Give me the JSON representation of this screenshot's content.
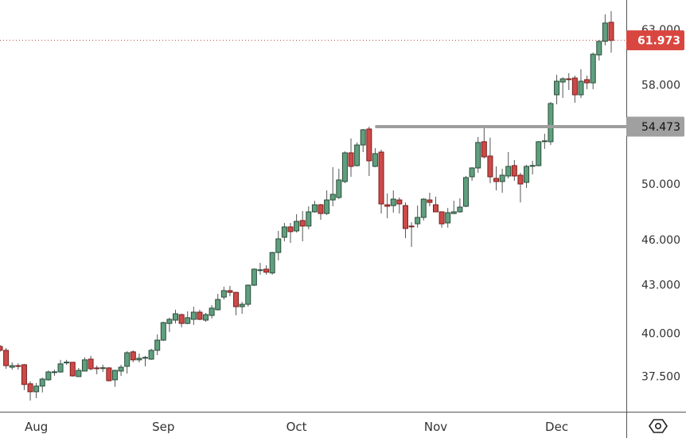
{
  "chart_data": {
    "type": "candlestick",
    "y_scale": "log",
    "grid": false,
    "y_ticks": [
      63,
      58,
      54.473,
      50,
      46,
      43,
      40,
      37.5
    ],
    "y_tick_labels": [
      "63.000",
      "58.000",
      "50.000",
      "46.000",
      "43.000",
      "40.000",
      "37.500"
    ],
    "x_tick_labels": [
      {
        "label": "Aug",
        "bar": 6
      },
      {
        "label": "Sep",
        "bar": 27
      },
      {
        "label": "Oct",
        "bar": 49
      },
      {
        "label": "Nov",
        "bar": 72
      },
      {
        "label": "Dec",
        "bar": 92
      }
    ],
    "last_price": {
      "value": 61.973,
      "label": "61.973"
    },
    "horizontal_line": {
      "value": 54.473,
      "label": "54.473",
      "from_bar": 62
    },
    "candles": [
      [
        39.22,
        39.31,
        38.9,
        38.99
      ],
      [
        38.99,
        39.13,
        37.93,
        38.11
      ],
      [
        38.02,
        38.3,
        37.88,
        38.11
      ],
      [
        38.11,
        38.25,
        37.88,
        38.1
      ],
      [
        38.16,
        38.21,
        36.74,
        37.05
      ],
      [
        37.09,
        37.22,
        36.17,
        36.65
      ],
      [
        36.65,
        37.13,
        36.3,
        36.96
      ],
      [
        36.96,
        37.44,
        36.61,
        37.35
      ],
      [
        37.31,
        37.84,
        37.26,
        37.75
      ],
      [
        37.75,
        37.88,
        37.53,
        37.76
      ],
      [
        37.75,
        38.44,
        37.71,
        38.21
      ],
      [
        38.3,
        38.44,
        38.16,
        38.31
      ],
      [
        38.3,
        38.32,
        37.49,
        37.53
      ],
      [
        37.49,
        37.98,
        37.49,
        37.84
      ],
      [
        37.8,
        38.58,
        37.8,
        38.44
      ],
      [
        38.48,
        38.67,
        37.84,
        37.93
      ],
      [
        37.98,
        38.11,
        37.62,
        37.97
      ],
      [
        37.98,
        38.16,
        37.75,
        37.99
      ],
      [
        37.98,
        38.02,
        37.22,
        37.26
      ],
      [
        37.31,
        37.88,
        36.92,
        37.84
      ],
      [
        37.8,
        38.16,
        37.53,
        38.02
      ],
      [
        38.07,
        38.94,
        37.66,
        38.85
      ],
      [
        38.9,
        38.99,
        38.3,
        38.44
      ],
      [
        38.44,
        38.81,
        38.3,
        38.53
      ],
      [
        38.57,
        38.67,
        38.07,
        38.58
      ],
      [
        38.48,
        39.08,
        38.44,
        38.99
      ],
      [
        38.99,
        39.93,
        38.71,
        39.59
      ],
      [
        39.59,
        40.69,
        39.55,
        40.64
      ],
      [
        40.59,
        40.94,
        40.07,
        40.84
      ],
      [
        40.79,
        41.43,
        40.59,
        41.18
      ],
      [
        41.13,
        41.18,
        40.35,
        40.59
      ],
      [
        40.59,
        41.33,
        40.54,
        40.94
      ],
      [
        40.84,
        41.62,
        40.5,
        41.28
      ],
      [
        41.28,
        41.43,
        40.79,
        40.84
      ],
      [
        40.79,
        41.23,
        40.69,
        41.13
      ],
      [
        41.08,
        41.72,
        40.89,
        41.53
      ],
      [
        41.43,
        42.42,
        41.38,
        42.07
      ],
      [
        42.22,
        42.88,
        42.07,
        42.63
      ],
      [
        42.63,
        42.93,
        42.27,
        42.52
      ],
      [
        42.52,
        42.54,
        41.09,
        41.62
      ],
      [
        41.62,
        41.92,
        41.18,
        41.77
      ],
      [
        41.77,
        43.03,
        41.62,
        42.98
      ],
      [
        42.98,
        44.07,
        42.93,
        44.02
      ],
      [
        43.97,
        44.44,
        43.66,
        43.98
      ],
      [
        44.02,
        44.28,
        43.66,
        43.82
      ],
      [
        43.77,
        45.18,
        43.66,
        45.13
      ],
      [
        45.13,
        46.61,
        44.6,
        46.06
      ],
      [
        46.17,
        47.17,
        45.89,
        46.89
      ],
      [
        46.89,
        47.17,
        45.78,
        46.56
      ],
      [
        46.61,
        47.79,
        46.5,
        47.28
      ],
      [
        47.34,
        48.01,
        45.89,
        46.95
      ],
      [
        46.95,
        48.36,
        46.72,
        47.96
      ],
      [
        47.96,
        48.76,
        47.9,
        48.47
      ],
      [
        48.47,
        48.53,
        47.39,
        47.84
      ],
      [
        47.84,
        49.52,
        47.73,
        48.82
      ],
      [
        48.82,
        51.27,
        48.36,
        49.23
      ],
      [
        49.0,
        51.15,
        48.88,
        50.3
      ],
      [
        50.18,
        52.5,
        50.06,
        52.38
      ],
      [
        52.38,
        53.52,
        50.54,
        51.33
      ],
      [
        51.39,
        53.2,
        51.33,
        53.0
      ],
      [
        53.0,
        54.28,
        52.44,
        54.22
      ],
      [
        54.28,
        54.47,
        50.6,
        51.76
      ],
      [
        51.33,
        52.75,
        51.27,
        52.32
      ],
      [
        52.44,
        52.63,
        47.84,
        48.53
      ],
      [
        48.47,
        49.29,
        47.5,
        48.36
      ],
      [
        48.41,
        49.52,
        47.9,
        48.88
      ],
      [
        48.82,
        49.0,
        47.84,
        48.53
      ],
      [
        48.41,
        48.64,
        46.11,
        46.78
      ],
      [
        46.95,
        47.22,
        45.51,
        46.94
      ],
      [
        47.11,
        48.41,
        46.84,
        47.56
      ],
      [
        47.56,
        48.94,
        47.34,
        48.88
      ],
      [
        48.82,
        49.35,
        48.36,
        48.64
      ],
      [
        48.47,
        49.06,
        47.96,
        47.96
      ],
      [
        47.96,
        47.98,
        46.84,
        47.11
      ],
      [
        47.17,
        48.24,
        46.84,
        47.9
      ],
      [
        47.84,
        48.76,
        47.79,
        47.96
      ],
      [
        47.96,
        48.94,
        47.9,
        48.3
      ],
      [
        48.36,
        50.6,
        48.3,
        50.48
      ],
      [
        50.54,
        51.27,
        50.24,
        51.21
      ],
      [
        51.21,
        53.64,
        50.84,
        53.2
      ],
      [
        53.26,
        54.41,
        51.95,
        52.07
      ],
      [
        52.13,
        53.58,
        50.06,
        50.54
      ],
      [
        50.42,
        51.33,
        49.52,
        50.18
      ],
      [
        50.18,
        51.15,
        49.35,
        50.66
      ],
      [
        50.6,
        52.44,
        50.42,
        51.33
      ],
      [
        51.39,
        51.82,
        50.24,
        50.6
      ],
      [
        50.66,
        50.84,
        48.64,
        50.0
      ],
      [
        50.12,
        51.45,
        49.71,
        51.33
      ],
      [
        51.39,
        51.76,
        50.72,
        51.4
      ],
      [
        51.39,
        53.32,
        51.33,
        53.26
      ],
      [
        53.32,
        53.9,
        52.69,
        53.33
      ],
      [
        53.26,
        56.52,
        53.0,
        56.39
      ],
      [
        57.13,
        58.86,
        56.32,
        58.3
      ],
      [
        58.23,
        58.65,
        56.86,
        58.51
      ],
      [
        58.51,
        59.0,
        57.54,
        58.5
      ],
      [
        58.58,
        58.79,
        56.45,
        57.13
      ],
      [
        57.13,
        59.35,
        56.86,
        58.3
      ],
      [
        58.44,
        58.79,
        57.61,
        58.16
      ],
      [
        58.16,
        60.85,
        57.61,
        60.7
      ],
      [
        60.64,
        62.02,
        60.13,
        61.88
      ],
      [
        61.88,
        64.43,
        61.51,
        63.6
      ],
      [
        63.67,
        64.74,
        60.85,
        61.97
      ]
    ],
    "candle_fields": [
      "open",
      "high",
      "low",
      "close"
    ]
  },
  "colors": {
    "up_fill": "#5f9f7d",
    "up_border": "#2b4c3b",
    "down_fill": "#cc4a48",
    "down_border": "#7a1e1c",
    "last_price_bg": "#d9463f",
    "hline": "#9e9e9e",
    "hline_label_bg": "#a0a0a0"
  },
  "icons": {
    "settings": "hexagon-settings-icon"
  }
}
